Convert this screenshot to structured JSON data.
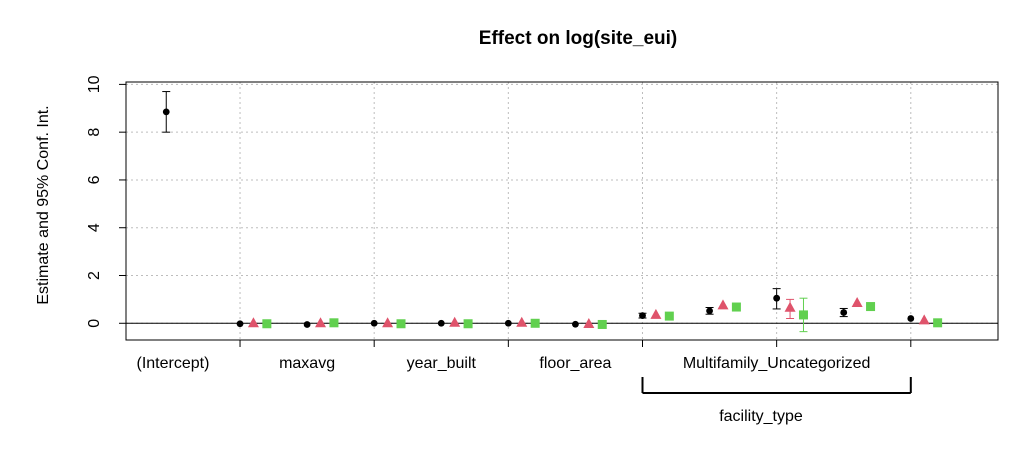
{
  "chart_data": {
    "type": "scatter",
    "title": "Effect on log(site_eui)",
    "ylabel": "Estimate and 95% Conf. Int.",
    "xlabel": "",
    "ylim": [
      -0.7,
      10.1
    ],
    "yticks": [
      0,
      2,
      4,
      6,
      8,
      10
    ],
    "xtick_labels": [
      "(Intercept)",
      "maxavg",
      "year_built",
      "floor_area",
      "Multifamily_Uncategorized"
    ],
    "group_bracket_label": "facility_type",
    "grid": true,
    "reference_line": 0,
    "series": [
      {
        "marker": "circle",
        "color": "#000000",
        "points": [
          {
            "x": 1.0,
            "y": 8.85,
            "lo": 8.0,
            "hi": 9.7
          },
          {
            "x": 1.55,
            "y": -0.02
          },
          {
            "x": 2.05,
            "y": -0.05
          },
          {
            "x": 2.55,
            "y": 0.0
          },
          {
            "x": 3.05,
            "y": 0.0
          },
          {
            "x": 3.55,
            "y": 0.0
          },
          {
            "x": 4.05,
            "y": -0.04
          },
          {
            "x": 4.55,
            "y": 0.32,
            "lo": 0.22,
            "hi": 0.42
          },
          {
            "x": 5.05,
            "y": 0.52,
            "lo": 0.38,
            "hi": 0.66
          },
          {
            "x": 5.55,
            "y": 1.05,
            "lo": 0.6,
            "hi": 1.45
          },
          {
            "x": 6.05,
            "y": 0.45,
            "lo": 0.28,
            "hi": 0.62
          },
          {
            "x": 6.55,
            "y": 0.2
          }
        ]
      },
      {
        "marker": "triangle",
        "color": "#df536b",
        "points": [
          {
            "x": 1.65,
            "y": 0.0
          },
          {
            "x": 2.15,
            "y": 0.0
          },
          {
            "x": 2.65,
            "y": 0.0
          },
          {
            "x": 3.15,
            "y": 0.02
          },
          {
            "x": 3.65,
            "y": 0.02
          },
          {
            "x": 4.15,
            "y": -0.03
          },
          {
            "x": 4.65,
            "y": 0.35
          },
          {
            "x": 5.15,
            "y": 0.75
          },
          {
            "x": 5.65,
            "y": 0.65,
            "lo": 0.2,
            "hi": 1.0
          },
          {
            "x": 6.15,
            "y": 0.85
          },
          {
            "x": 6.65,
            "y": 0.12
          }
        ]
      },
      {
        "marker": "square",
        "color": "#61d04f",
        "points": [
          {
            "x": 1.75,
            "y": -0.02
          },
          {
            "x": 2.25,
            "y": 0.02
          },
          {
            "x": 2.75,
            "y": -0.02
          },
          {
            "x": 3.25,
            "y": -0.02
          },
          {
            "x": 3.75,
            "y": 0.0
          },
          {
            "x": 4.25,
            "y": -0.05
          },
          {
            "x": 4.75,
            "y": 0.3
          },
          {
            "x": 5.25,
            "y": 0.68
          },
          {
            "x": 5.75,
            "y": 0.35,
            "lo": -0.35,
            "hi": 1.05
          },
          {
            "x": 6.25,
            "y": 0.7
          },
          {
            "x": 6.75,
            "y": 0.02
          }
        ]
      }
    ]
  }
}
